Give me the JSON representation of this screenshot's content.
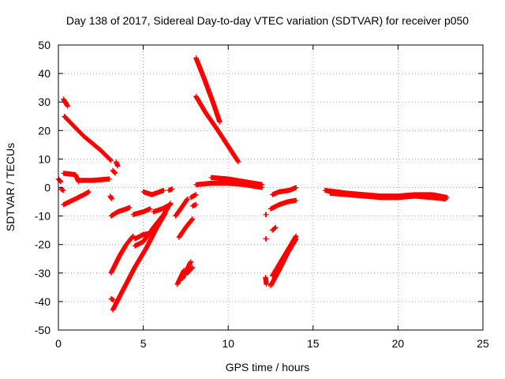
{
  "chart_data": {
    "type": "scatter",
    "title": "Day 138 of 2017, Sidereal Day-to-day VTEC variation (SDTVAR) for receiver p050",
    "xlabel": "GPS time / hours",
    "ylabel": "SDTVAR / TECUs",
    "xlim": [
      0,
      25
    ],
    "ylim": [
      -50,
      50
    ],
    "x_ticks": [
      0,
      5,
      10,
      15,
      20,
      25
    ],
    "y_ticks": [
      -50,
      -40,
      -30,
      -20,
      -10,
      0,
      10,
      20,
      30,
      40,
      50
    ],
    "x_tick_labels": [
      "0",
      "5",
      "10",
      "15",
      "20",
      "25"
    ],
    "y_tick_labels": [
      "-50",
      "-40",
      "-30",
      "-20",
      "-10",
      "0",
      "10",
      "20",
      "30",
      "40",
      "50"
    ],
    "grid": true,
    "marker": "+",
    "color": "#ff0000",
    "segments": [
      {
        "x": [
          0.0,
          0.15
        ],
        "y": [
          3.0,
          2.0
        ]
      },
      {
        "x": [
          0.15,
          0.3
        ],
        "y": [
          -0.5,
          -1.0
        ]
      },
      {
        "x": [
          0.3,
          0.55
        ],
        "y": [
          31.0,
          28.5
        ]
      },
      {
        "x": [
          0.35,
          1.0,
          1.5,
          2.0,
          2.5,
          3.1
        ],
        "y": [
          25.0,
          21.0,
          18.0,
          15.5,
          13.0,
          9.5
        ]
      },
      {
        "x": [
          3.2,
          3.35
        ],
        "y": [
          6.0,
          5.0
        ]
      },
      {
        "x": [
          3.4,
          3.5
        ],
        "y": [
          9.0,
          7.5
        ]
      },
      {
        "x": [
          0.3,
          1.0,
          1.2
        ],
        "y": [
          5.0,
          4.5,
          2.0
        ]
      },
      {
        "x": [
          1.2,
          2.0,
          3.0
        ],
        "y": [
          2.5,
          2.5,
          3.0
        ]
      },
      {
        "x": [
          0.3,
          1.0,
          1.5,
          1.8
        ],
        "y": [
          -6.0,
          -4.0,
          -2.5,
          -1.5
        ]
      },
      {
        "x": [
          3.05,
          3.15
        ],
        "y": [
          -3.0,
          -4.0
        ]
      },
      {
        "x": [
          3.1,
          3.5,
          4.0,
          4.2
        ],
        "y": [
          -10.0,
          -8.5,
          -7.5,
          -7.0
        ]
      },
      {
        "x": [
          3.1,
          3.6,
          4.0,
          4.4
        ],
        "y": [
          -30.0,
          -24.0,
          -20.0,
          -17.0
        ]
      },
      {
        "x": [
          3.1,
          3.25
        ],
        "y": [
          -39.0,
          -39.5
        ]
      },
      {
        "x": [
          3.2,
          3.8,
          4.5,
          5.2,
          5.8,
          6.3
        ],
        "y": [
          -43.0,
          -36.0,
          -28.0,
          -21.0,
          -14.0,
          -9.0
        ]
      },
      {
        "x": [
          4.4,
          5.0,
          5.4
        ],
        "y": [
          -9.5,
          -8.5,
          -7.5
        ]
      },
      {
        "x": [
          4.5,
          5.0,
          5.5
        ],
        "y": [
          -18.0,
          -16.5,
          -16.0
        ]
      },
      {
        "x": [
          4.5,
          5.0
        ],
        "y": [
          -20.5,
          -19.0
        ]
      },
      {
        "x": [
          5.0,
          5.6,
          6.2,
          6.6
        ],
        "y": [
          -19.0,
          -14.0,
          -9.5,
          -5.5
        ]
      },
      {
        "x": [
          5.0,
          5.5,
          6.2
        ],
        "y": [
          -1.5,
          -2.5,
          -1.0
        ]
      },
      {
        "x": [
          6.5,
          6.7
        ],
        "y": [
          -1.0,
          -0.5
        ]
      },
      {
        "x": [
          5.6,
          6.1,
          6.6
        ],
        "y": [
          -8.5,
          -7.5,
          -6.0
        ]
      },
      {
        "x": [
          6.9,
          7.2,
          7.6
        ],
        "y": [
          -10.0,
          -7.5,
          -4.0
        ]
      },
      {
        "x": [
          7.0,
          7.4
        ],
        "y": [
          -34.0,
          -29.0
        ]
      },
      {
        "x": [
          7.3,
          7.8
        ],
        "y": [
          -32.0,
          -26.0
        ]
      },
      {
        "x": [
          7.6,
          7.9
        ],
        "y": [
          -30.0,
          -28.0
        ]
      },
      {
        "x": [
          7.1,
          7.5,
          7.9
        ],
        "y": [
          -17.5,
          -14.0,
          -11.0
        ]
      },
      {
        "x": [
          7.9,
          8.1
        ],
        "y": [
          -6.5,
          -6.0
        ]
      },
      {
        "x": [
          7.8,
          8.1
        ],
        "y": [
          -3.5,
          -2.5
        ]
      },
      {
        "x": [
          8.1,
          8.6,
          9.1,
          9.5
        ],
        "y": [
          45.5,
          38.0,
          30.0,
          23.0
        ]
      },
      {
        "x": [
          8.1,
          8.7,
          9.4,
          10.0,
          10.6
        ],
        "y": [
          32.0,
          26.0,
          20.0,
          14.5,
          9.0
        ]
      },
      {
        "x": [
          8.1,
          9.0,
          10.0,
          11.0,
          12.0
        ],
        "y": [
          1.0,
          1.5,
          1.5,
          1.0,
          0.0
        ]
      },
      {
        "x": [
          9.0,
          10.0,
          11.0,
          12.0
        ],
        "y": [
          3.5,
          3.0,
          2.0,
          1.0
        ]
      },
      {
        "x": [
          12.2,
          12.25
        ],
        "y": [
          -9.5,
          -9.5
        ]
      },
      {
        "x": [
          12.2,
          12.25
        ],
        "y": [
          -18.0,
          -18.0
        ]
      },
      {
        "x": [
          12.2,
          12.25
        ],
        "y": [
          -31.5,
          -34.0
        ]
      },
      {
        "x": [
          12.6,
          12.8
        ],
        "y": [
          -15.0,
          -14.0
        ]
      },
      {
        "x": [
          12.5,
          13.0,
          13.5,
          14.0
        ],
        "y": [
          -7.5,
          -6.0,
          -5.0,
          -4.5
        ]
      },
      {
        "x": [
          12.6,
          13.0,
          13.6,
          14.0
        ],
        "y": [
          -2.5,
          -1.5,
          -1.0,
          0.0
        ]
      },
      {
        "x": [
          12.5,
          13.0,
          13.5,
          14.0
        ],
        "y": [
          -34.5,
          -29.0,
          -23.0,
          -18.0
        ]
      },
      {
        "x": [
          12.6,
          13.1,
          13.6,
          14.0
        ],
        "y": [
          -31.0,
          -26.0,
          -21.0,
          -17.0
        ]
      },
      {
        "x": [
          15.7,
          17.0,
          18.0,
          19.0,
          20.0,
          21.0,
          22.0,
          22.9
        ],
        "y": [
          -1.0,
          -2.0,
          -2.5,
          -3.0,
          -3.0,
          -2.5,
          -2.5,
          -3.5
        ]
      },
      {
        "x": [
          16.0,
          17.0,
          18.0,
          19.0,
          20.0,
          21.0,
          22.0,
          22.8
        ],
        "y": [
          -2.0,
          -2.5,
          -3.0,
          -3.5,
          -3.5,
          -3.0,
          -3.5,
          -4.0
        ]
      }
    ]
  }
}
